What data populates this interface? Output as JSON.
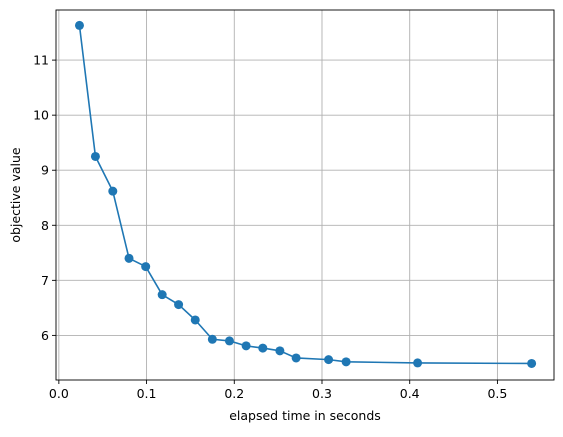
{
  "chart_data": {
    "type": "line",
    "title": "",
    "xlabel": "elapsed time in seconds",
    "ylabel": "objective value",
    "xlim": [
      -0.00325,
      0.5645
    ],
    "ylim": [
      5.19,
      11.91
    ],
    "xticks": [
      0.0,
      0.1,
      0.2,
      0.3,
      0.4,
      0.5
    ],
    "xtick_labels": [
      "0.0",
      "0.1",
      "0.2",
      "0.3",
      "0.4",
      "0.5"
    ],
    "yticks": [
      6,
      7,
      8,
      9,
      10,
      11
    ],
    "ytick_labels": [
      "6",
      "7",
      "8",
      "9",
      "10",
      "11"
    ],
    "grid": true,
    "legend": "none",
    "series": [
      {
        "color": "#1f77b4",
        "marker": "circle",
        "x": [
          0.0235,
          0.0417,
          0.0615,
          0.08,
          0.099,
          0.1178,
          0.1365,
          0.1555,
          0.175,
          0.1945,
          0.2135,
          0.2325,
          0.252,
          0.2705,
          0.3075,
          0.3275,
          0.409,
          0.539
        ],
        "y": [
          11.63,
          9.25,
          8.62,
          7.4,
          7.25,
          6.74,
          6.56,
          6.28,
          5.93,
          5.9,
          5.81,
          5.77,
          5.72,
          5.59,
          5.56,
          5.52,
          5.5,
          5.49
        ]
      }
    ]
  }
}
